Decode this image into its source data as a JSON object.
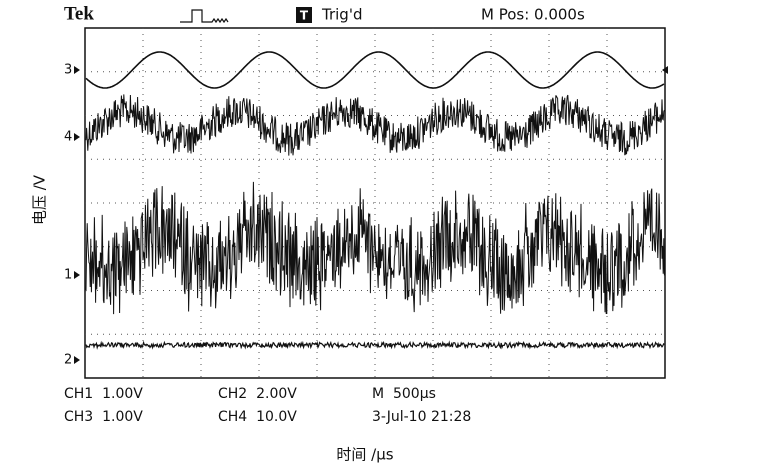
{
  "header": {
    "brand": "Tek",
    "trigger_icon": "T",
    "trigger": "Trig'd",
    "position": "M Pos: 0.000s"
  },
  "axes": {
    "y_label": "电压 /V",
    "x_label": "时间 /μs"
  },
  "channel_markers": [
    "3",
    "4",
    "1",
    "2"
  ],
  "readout": {
    "rows": [
      [
        "CH1  1.00V",
        "CH2  2.00V",
        "M  500μs"
      ],
      [
        "CH3  1.00V",
        "CH4  10.0V",
        "3-Jul-10 21:28"
      ]
    ]
  }
}
